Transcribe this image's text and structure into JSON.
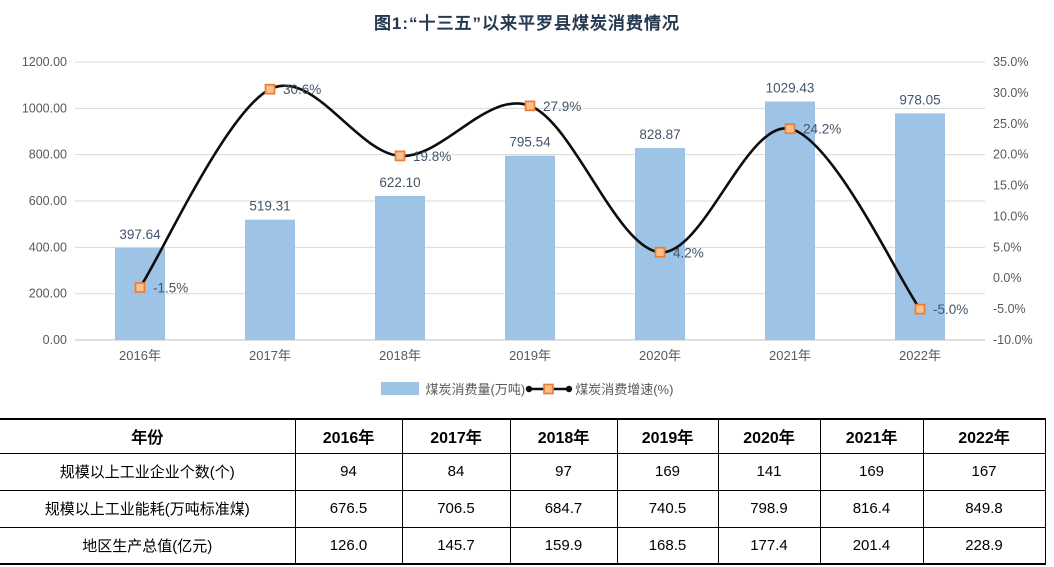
{
  "title": "图1:“十三五”以来平罗县煤炭消费情况",
  "chart_data": {
    "type": "bar+line",
    "categories": [
      "2016年",
      "2017年",
      "2018年",
      "2019年",
      "2020年",
      "2021年",
      "2022年"
    ],
    "series": [
      {
        "name": "煤炭消费量(万吨)",
        "type": "bar",
        "axis": "left",
        "values": [
          397.64,
          519.31,
          622.1,
          795.54,
          828.87,
          1029.43,
          978.05
        ],
        "labels": [
          "397.64",
          "519.31",
          "622.10",
          "795.54",
          "828.87",
          "1029.43",
          "978.05"
        ]
      },
      {
        "name": "煤炭消费增速(%)",
        "type": "line",
        "axis": "right",
        "values": [
          -1.5,
          30.6,
          19.8,
          27.9,
          4.2,
          24.2,
          -5.0
        ],
        "labels": [
          "-1.5%",
          "30.6%",
          "19.8%",
          "27.9%",
          "4.2%",
          "24.2%",
          "-5.0%"
        ]
      }
    ],
    "left_axis": {
      "min": 0,
      "max": 1200,
      "step": 200,
      "tick_labels": [
        "0.00",
        "200.00",
        "400.00",
        "600.00",
        "800.00",
        "1000.00",
        "1200.00"
      ]
    },
    "right_axis": {
      "min": -10,
      "max": 35,
      "step": 5,
      "tick_labels": [
        "-10.0%",
        "-5.0%",
        "0.0%",
        "5.0%",
        "10.0%",
        "15.0%",
        "20.0%",
        "25.0%",
        "30.0%",
        "35.0%"
      ]
    },
    "grid": true,
    "legend_position": "bottom",
    "colors": {
      "bar": "#9DC3E6",
      "line": "#0d0d0d",
      "marker_fill": "#FAC090",
      "marker_stroke": "#ED7D31",
      "gridline": "#D9D9D9",
      "axis_line": "#BFBFBF",
      "data_label": "#44546A",
      "tick_label": "#595959",
      "title": "#263850"
    }
  },
  "table": {
    "header": [
      "年份",
      "2016年",
      "2017年",
      "2018年",
      "2019年",
      "2020年",
      "2021年",
      "2022年"
    ],
    "rows": [
      {
        "label": "规模以上工业企业个数(个)",
        "values": [
          "94",
          "84",
          "97",
          "169",
          "141",
          "169",
          "167"
        ]
      },
      {
        "label": "规模以上工业能耗(万吨标准煤)",
        "values": [
          "676.5",
          "706.5",
          "684.7",
          "740.5",
          "798.9",
          "816.4",
          "849.8"
        ]
      },
      {
        "label": "地区生产总值(亿元)",
        "values": [
          "126.0",
          "145.7",
          "159.9",
          "168.5",
          "177.4",
          "201.4",
          "228.9"
        ]
      }
    ]
  }
}
